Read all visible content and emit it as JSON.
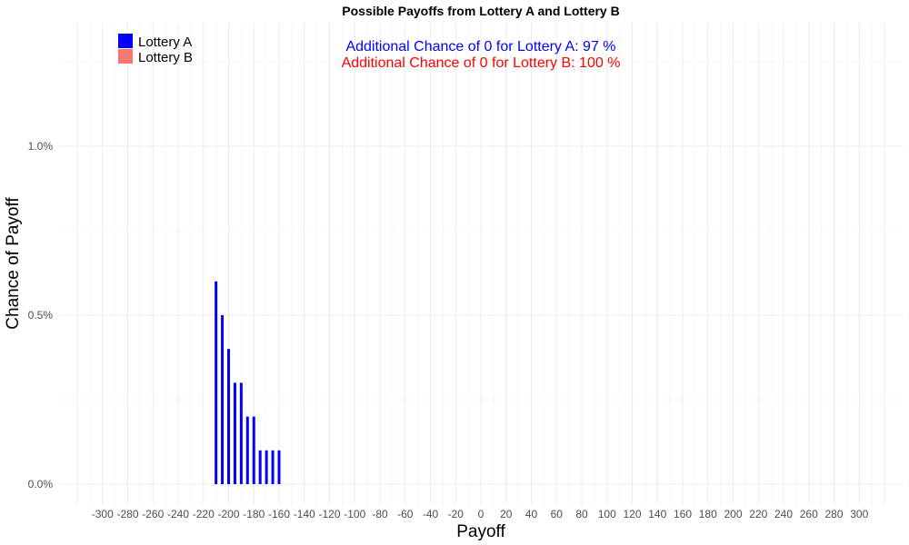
{
  "chart_data": {
    "type": "bar",
    "title": "Possible Payoffs from Lottery A and Lottery B",
    "xlabel": "Payoff",
    "ylabel": "Chance of Payoff",
    "xlim": [
      -320,
      320
    ],
    "ylim": [
      0,
      1.3
    ],
    "x_ticks": [
      -300,
      -280,
      -260,
      -240,
      -220,
      -200,
      -180,
      -160,
      -140,
      -120,
      -100,
      -80,
      -60,
      -40,
      -20,
      0,
      20,
      40,
      60,
      80,
      100,
      120,
      140,
      160,
      180,
      200,
      220,
      240,
      260,
      280,
      300
    ],
    "y_ticks": [
      0.0,
      0.5,
      1.0
    ],
    "y_tick_labels": [
      "0.0%",
      "0.5%",
      "1.0%"
    ],
    "grid": true,
    "legend_position": "top-left",
    "series": [
      {
        "name": "Lottery A",
        "color": "#0000ff",
        "x": [
          -210,
          -205,
          -200,
          -195,
          -190,
          -185,
          -180,
          -175,
          -170,
          -165,
          -160
        ],
        "values": [
          0.6,
          0.5,
          0.4,
          0.3,
          0.3,
          0.2,
          0.2,
          0.1,
          0.1,
          0.1,
          0.1
        ]
      },
      {
        "name": "Lottery B",
        "color": "#f8766d",
        "x": [],
        "values": []
      }
    ],
    "annotations": [
      {
        "text": "Additional Chance of 0 for Lottery A:  97 %",
        "color": "#0000ff"
      },
      {
        "text": "Additional Chance of 0 for Lottery B:  100 %",
        "color": "#ff0000"
      }
    ]
  }
}
